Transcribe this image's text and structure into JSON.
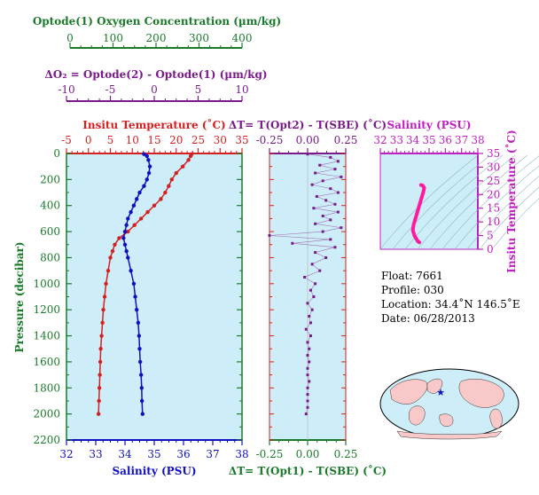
{
  "colors": {
    "green": "#1a7a2a",
    "purple": "#7a1a8a",
    "red": "#d42020",
    "blue": "#1010c0",
    "magenta": "#c020c0",
    "panel_bg": "#cdeef8",
    "pink": "#ff1aa0"
  },
  "oxygen_axis": {
    "title": "Optode(1) Oxygen Concentration (µm/kg)",
    "ticks": [
      "0",
      "100",
      "200",
      "300",
      "400"
    ]
  },
  "do2_axis": {
    "title": "ΔO₂ = Optode(2) - Optode(1)     (µm/kg)",
    "ticks": [
      "-10",
      "-5",
      "0",
      "5",
      "10"
    ]
  },
  "main_plot": {
    "top_title": "Insitu Temperature (˚C)",
    "top_ticks": [
      "-5",
      "0",
      "5",
      "10",
      "15",
      "20",
      "25",
      "30",
      "35"
    ],
    "bottom_title": "Salinity (PSU)",
    "bottom_ticks": [
      "32",
      "33",
      "34",
      "35",
      "36",
      "37",
      "38"
    ],
    "y_title": "Pressure (decibar)",
    "y_ticks": [
      "0",
      "200",
      "400",
      "600",
      "800",
      "1000",
      "1200",
      "1400",
      "1600",
      "1800",
      "2000",
      "2200"
    ]
  },
  "dt_plot": {
    "top_title": "ΔT= T(Opt2) - T(SBE) (˚C)",
    "bottom_title": "ΔT= T(Opt1) - T(SBE) (˚C)",
    "ticks": [
      "-0.25",
      "0.00",
      "0.25"
    ]
  },
  "ts_plot": {
    "top_title": "Salinity (PSU)",
    "top_ticks": [
      "32",
      "33",
      "34",
      "35",
      "36",
      "37",
      "38"
    ],
    "right_title": "Insitu Temperature (˚C)",
    "right_ticks": [
      "0",
      "5",
      "10",
      "15",
      "20",
      "25",
      "30",
      "35"
    ]
  },
  "info": {
    "float": "Float:  7661",
    "profile": "Profile:  030",
    "location": "Location:  34.4˚N  146.5˚E",
    "date": "Date:  06/28/2013"
  },
  "chart_data": [
    {
      "type": "line",
      "name": "Insitu Temperature",
      "xlabel": "Insitu Temperature (˚C)",
      "ylabel": "Pressure (decibar)",
      "xlim": [
        -5,
        35
      ],
      "ylim": [
        2200,
        0
      ],
      "pressure": [
        5,
        20,
        50,
        100,
        150,
        200,
        250,
        300,
        350,
        400,
        450,
        500,
        550,
        600,
        650,
        700,
        750,
        800,
        900,
        1000,
        1100,
        1200,
        1300,
        1400,
        1500,
        1600,
        1700,
        1800,
        1900,
        2000
      ],
      "values": [
        23.5,
        23.3,
        22.8,
        21.5,
        20.0,
        19.0,
        18.3,
        17.5,
        16.5,
        15.0,
        13.5,
        12.0,
        10.5,
        9.0,
        7.0,
        6.0,
        5.5,
        5.0,
        4.5,
        4.0,
        3.7,
        3.4,
        3.2,
        3.0,
        2.8,
        2.7,
        2.6,
        2.5,
        2.4,
        2.3
      ]
    },
    {
      "type": "line",
      "name": "Salinity",
      "xlabel": "Salinity (PSU)",
      "ylabel": "Pressure (decibar)",
      "xlim": [
        32,
        38
      ],
      "ylim": [
        2200,
        0
      ],
      "pressure": [
        5,
        20,
        50,
        100,
        150,
        200,
        250,
        300,
        350,
        400,
        450,
        500,
        550,
        600,
        650,
        700,
        750,
        800,
        900,
        1000,
        1100,
        1200,
        1300,
        1400,
        1500,
        1600,
        1700,
        1800,
        1900,
        2000
      ],
      "values": [
        34.65,
        34.75,
        34.8,
        34.85,
        34.82,
        34.75,
        34.65,
        34.5,
        34.4,
        34.3,
        34.2,
        34.1,
        34.05,
        34.0,
        33.95,
        34.0,
        34.05,
        34.1,
        34.2,
        34.3,
        34.35,
        34.4,
        34.45,
        34.48,
        34.5,
        34.52,
        34.55,
        34.57,
        34.58,
        34.6
      ]
    },
    {
      "type": "scatter",
      "name": "ΔT",
      "xlabel": "ΔT (˚C)",
      "xlim": [
        -0.3,
        0.25
      ],
      "ylim": [
        2200,
        0
      ],
      "pressure": [
        5,
        30,
        60,
        90,
        120,
        150,
        180,
        210,
        240,
        270,
        300,
        330,
        360,
        390,
        420,
        450,
        480,
        510,
        540,
        570,
        600,
        630,
        660,
        690,
        720,
        760,
        800,
        850,
        900,
        950,
        1000,
        1050,
        1100,
        1150,
        1200,
        1250,
        1300,
        1350,
        1400,
        1450,
        1500,
        1550,
        1600,
        1650,
        1700,
        1750,
        1800,
        1850,
        1900,
        1950,
        2000
      ],
      "values": [
        0.0,
        0.15,
        0.2,
        0.08,
        0.18,
        0.05,
        0.22,
        0.1,
        0.03,
        0.15,
        0.2,
        0.06,
        0.12,
        0.18,
        0.04,
        0.2,
        0.1,
        0.15,
        0.05,
        0.22,
        0.1,
        -0.28,
        0.15,
        -0.1,
        0.18,
        0.05,
        0.12,
        0.03,
        0.08,
        -0.02,
        0.05,
        0.02,
        0.04,
        0.0,
        0.03,
        0.01,
        0.02,
        -0.01,
        0.02,
        0.0,
        0.01,
        0.0,
        0.01,
        0.0,
        0.0,
        0.01,
        0.0,
        0.0,
        0.0,
        0.0,
        -0.01
      ]
    },
    {
      "type": "line",
      "name": "T-S",
      "xlabel": "Salinity (PSU)",
      "ylabel": "Insitu Temperature (˚C)",
      "xlim": [
        32,
        38
      ],
      "ylim": [
        0,
        35
      ],
      "salinity": [
        34.4,
        34.3,
        34.2,
        34.1,
        34.05,
        34.0,
        34.05,
        34.15,
        34.25,
        34.35,
        34.45,
        34.55,
        34.65,
        34.7,
        34.6,
        34.5
      ],
      "temperature": [
        2.5,
        3.0,
        4.0,
        5.0,
        6.0,
        7.0,
        9.0,
        11.0,
        13.0,
        15.0,
        17.0,
        19.0,
        21.0,
        22.5,
        23.3,
        23.5
      ]
    }
  ]
}
